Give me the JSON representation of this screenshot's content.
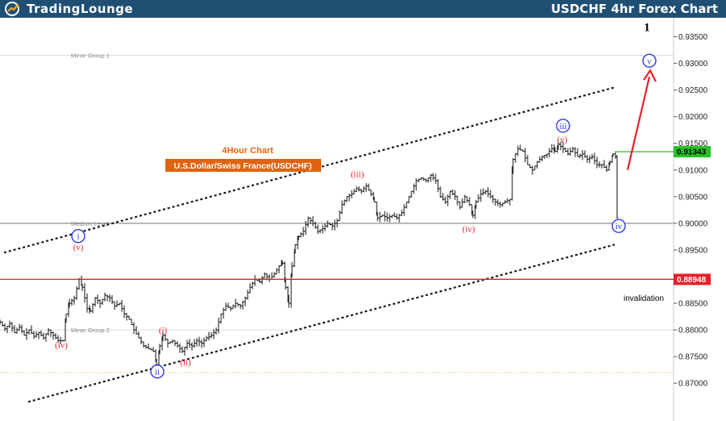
{
  "header": {
    "logo_text": "TradingLounge",
    "chart_title": "USDCHF 4hr Forex Chart"
  },
  "colors": {
    "header_bg": "#1f4f73",
    "logo_accent": "#f5a623",
    "up_arrow": "#e8202a",
    "price_tag_green": "#22c322",
    "price_tag_red": "#e8202a",
    "chart_label_bg": "#e0640f",
    "chart_label_text": "#e0640f",
    "wave_red": "#e8202a",
    "wave_blue": "#2f3adf"
  },
  "chart_data": {
    "type": "line",
    "symbol": "USDCHF",
    "timeframe": "4hr",
    "y_axis_side": "right",
    "ylim": [
      0.867,
      0.9375
    ],
    "y_ticks": [
      "0.93500",
      "0.93000",
      "0.92500",
      "0.92000",
      "0.91500",
      "0.91000",
      "0.90500",
      "0.90000",
      "0.89500",
      "0.89000",
      "0.88500",
      "0.88000",
      "0.87500",
      "0.87000"
    ],
    "price_path": [
      [
        0,
        0.8815
      ],
      [
        6,
        0.8802
      ],
      [
        12,
        0.8812
      ],
      [
        18,
        0.8795
      ],
      [
        24,
        0.8805
      ],
      [
        30,
        0.879
      ],
      [
        36,
        0.88
      ],
      [
        42,
        0.8788
      ],
      [
        48,
        0.8795
      ],
      [
        54,
        0.8785
      ],
      [
        60,
        0.88
      ],
      [
        66,
        0.879
      ],
      [
        72,
        0.878
      ],
      [
        78,
        0.878
      ],
      [
        82,
        0.883
      ],
      [
        86,
        0.885
      ],
      [
        92,
        0.886
      ],
      [
        98,
        0.8895
      ],
      [
        102,
        0.888
      ],
      [
        108,
        0.884
      ],
      [
        112,
        0.8835
      ],
      [
        118,
        0.886
      ],
      [
        124,
        0.885
      ],
      [
        130,
        0.8865
      ],
      [
        136,
        0.886
      ],
      [
        142,
        0.8845
      ],
      [
        148,
        0.885
      ],
      [
        154,
        0.883
      ],
      [
        160,
        0.882
      ],
      [
        166,
        0.88
      ],
      [
        172,
        0.8785
      ],
      [
        178,
        0.877
      ],
      [
        184,
        0.8765
      ],
      [
        190,
        0.876
      ],
      [
        194,
        0.8735
      ],
      [
        198,
        0.877
      ],
      [
        202,
        0.879
      ],
      [
        208,
        0.8775
      ],
      [
        214,
        0.878
      ],
      [
        220,
        0.877
      ],
      [
        226,
        0.876
      ],
      [
        232,
        0.8775
      ],
      [
        238,
        0.877
      ],
      [
        244,
        0.878
      ],
      [
        250,
        0.8775
      ],
      [
        256,
        0.8785
      ],
      [
        262,
        0.879
      ],
      [
        268,
        0.88
      ],
      [
        274,
        0.883
      ],
      [
        280,
        0.8845
      ],
      [
        286,
        0.884
      ],
      [
        292,
        0.885
      ],
      [
        298,
        0.8845
      ],
      [
        304,
        0.886
      ],
      [
        310,
        0.888
      ],
      [
        316,
        0.8895
      ],
      [
        322,
        0.889
      ],
      [
        328,
        0.8905
      ],
      [
        334,
        0.8895
      ],
      [
        340,
        0.8905
      ],
      [
        346,
        0.892
      ],
      [
        350,
        0.8925
      ],
      [
        354,
        0.888
      ],
      [
        358,
        0.885
      ],
      [
        362,
        0.892
      ],
      [
        366,
        0.896
      ],
      [
        370,
        0.8975
      ],
      [
        376,
        0.8985
      ],
      [
        382,
        0.901
      ],
      [
        388,
        0.9
      ],
      [
        394,
        0.8985
      ],
      [
        400,
        0.899
      ],
      [
        406,
        0.9
      ],
      [
        412,
        0.8995
      ],
      [
        418,
        0.9005
      ],
      [
        424,
        0.9035
      ],
      [
        430,
        0.905
      ],
      [
        436,
        0.9055
      ],
      [
        442,
        0.9065
      ],
      [
        448,
        0.906
      ],
      [
        454,
        0.907
      ],
      [
        460,
        0.9055
      ],
      [
        464,
        0.904
      ],
      [
        468,
        0.901
      ],
      [
        474,
        0.9015
      ],
      [
        480,
        0.901
      ],
      [
        486,
        0.9015
      ],
      [
        492,
        0.901
      ],
      [
        498,
        0.902
      ],
      [
        504,
        0.904
      ],
      [
        510,
        0.906
      ],
      [
        516,
        0.908
      ],
      [
        522,
        0.9085
      ],
      [
        528,
        0.908
      ],
      [
        534,
        0.909
      ],
      [
        540,
        0.908
      ],
      [
        546,
        0.905
      ],
      [
        552,
        0.904
      ],
      [
        558,
        0.906
      ],
      [
        564,
        0.905
      ],
      [
        570,
        0.903
      ],
      [
        576,
        0.905
      ],
      [
        582,
        0.9035
      ],
      [
        586,
        0.9015
      ],
      [
        590,
        0.904
      ],
      [
        596,
        0.9055
      ],
      [
        602,
        0.906
      ],
      [
        608,
        0.905
      ],
      [
        614,
        0.904
      ],
      [
        620,
        0.9035
      ],
      [
        626,
        0.904
      ],
      [
        632,
        0.9045
      ],
      [
        636,
        0.912
      ],
      [
        642,
        0.914
      ],
      [
        648,
        0.9135
      ],
      [
        654,
        0.911
      ],
      [
        660,
        0.91
      ],
      [
        666,
        0.9115
      ],
      [
        672,
        0.9125
      ],
      [
        678,
        0.913
      ],
      [
        684,
        0.914
      ],
      [
        688,
        0.9135
      ],
      [
        692,
        0.9148
      ],
      [
        698,
        0.914
      ],
      [
        704,
        0.913
      ],
      [
        710,
        0.914
      ],
      [
        716,
        0.9125
      ],
      [
        722,
        0.913
      ],
      [
        728,
        0.912
      ],
      [
        734,
        0.9125
      ],
      [
        740,
        0.911
      ],
      [
        746,
        0.911
      ],
      [
        752,
        0.91
      ],
      [
        756,
        0.9115
      ],
      [
        760,
        0.913
      ],
      [
        763,
        0.9125
      ],
      [
        765,
        0.901
      ]
    ],
    "channel": {
      "upper": {
        "from": [
          5,
          0.8945
        ],
        "to": [
          762,
          0.9255
        ]
      },
      "lower": {
        "from": [
          35,
          0.8665
        ],
        "to": [
          762,
          0.896
        ]
      }
    },
    "horizontal_lines": [
      {
        "name": "minor-group-1",
        "y": 0.9315,
        "label": "Minor Group 1",
        "color": "#d8d8d8"
      },
      {
        "name": "medium-level",
        "y": 0.9,
        "label": "Medium Level",
        "color": "#8c8c96"
      },
      {
        "name": "invalidation-level",
        "y": 0.88948,
        "label": "",
        "color": "#e8202a"
      },
      {
        "name": "minor-group-2",
        "y": 0.88,
        "label": "Minor Group 2",
        "color": "#dcdcdc"
      },
      {
        "name": "bottom-dotted",
        "y": 0.872,
        "label": "",
        "color": "#f0c89b"
      }
    ],
    "price_tags": [
      {
        "name": "current-price-tag",
        "value": "0.91343",
        "y": 0.91343,
        "color": "#22c322",
        "text_color": "#000000",
        "line_from_x": 762
      },
      {
        "name": "invalidation-price-tag",
        "value": "0.88948",
        "y": 0.88948,
        "color": "#e8202a",
        "text_color": "#ffffff",
        "line_from_x": 96
      }
    ],
    "wave_labels": [
      {
        "name": "wave-i-blue",
        "text": "i",
        "x": 97,
        "y": 0.8976,
        "color": "#2f3adf",
        "circled": true
      },
      {
        "name": "wave-v-red-minor",
        "text": "(v)",
        "x": 97,
        "y": 0.8956,
        "color": "#e8202a",
        "circled": false
      },
      {
        "name": "wave-iv-red-left",
        "text": "(iv)",
        "x": 76,
        "y": 0.8772,
        "color": "#e8202a",
        "circled": false
      },
      {
        "name": "wave-i-red",
        "text": "(i)",
        "x": 202,
        "y": 0.88,
        "color": "#e8202a",
        "circled": false
      },
      {
        "name": "wave-ii-red",
        "text": "(ii)",
        "x": 230,
        "y": 0.874,
        "color": "#e8202a",
        "circled": false
      },
      {
        "name": "wave-ii-blue",
        "text": "ii",
        "x": 195,
        "y": 0.8722,
        "color": "#2f3adf",
        "circled": true
      },
      {
        "name": "wave-iii-red",
        "text": "(iii)",
        "x": 443,
        "y": 0.9093,
        "color": "#e8202a",
        "circled": false
      },
      {
        "name": "wave-iv-red",
        "text": "(iv)",
        "x": 581,
        "y": 0.899,
        "color": "#e8202a",
        "circled": false
      },
      {
        "name": "wave-v-red",
        "text": "(v)",
        "x": 697,
        "y": 0.9158,
        "color": "#e8202a",
        "circled": false
      },
      {
        "name": "wave-iii-blue",
        "text": "iii",
        "x": 698,
        "y": 0.9183,
        "color": "#2f3adf",
        "circled": true
      },
      {
        "name": "wave-iv-blue",
        "text": "iv",
        "x": 767,
        "y": 0.8995,
        "color": "#2f3adf",
        "circled": true
      },
      {
        "name": "wave-v-blue",
        "text": "v",
        "x": 805,
        "y": 0.9305,
        "color": "#2f3adf",
        "circled": true
      },
      {
        "name": "wave-1-black",
        "text": "1",
        "x": 802,
        "y": 0.9367,
        "color": "#000000",
        "circled": false
      }
    ],
    "projection_arrow": {
      "from": [
        778,
        0.91
      ],
      "to": [
        805,
        0.9305
      ],
      "color": "#e8202a"
    },
    "annotations": {
      "chart_label_1": "4Hour Chart",
      "chart_label_2": "U.S.Dollar/Swiss France(USDCHF)",
      "invalidation": "invalidation"
    }
  }
}
